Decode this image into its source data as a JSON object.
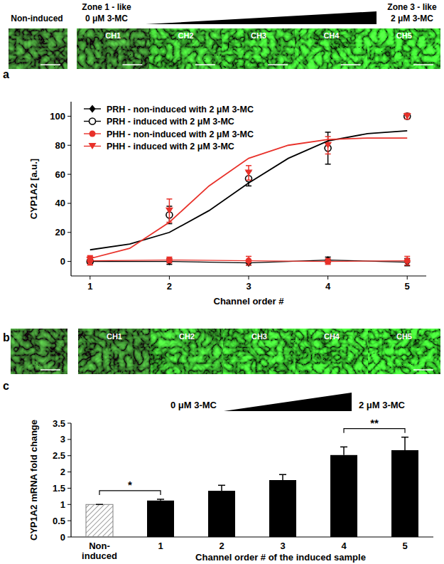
{
  "panel_letters": [
    "a",
    "b",
    "c"
  ],
  "image_panels": [
    {
      "reference_label": "Non-induced",
      "zone_start": "Zone 1 - like",
      "zone_end": "Zone 3 - like",
      "conc_start": "0 μM 3-MC",
      "conc_end": "2 μM 3-MC",
      "channels": [
        "CH1",
        "CH2",
        "CH3",
        "CH4",
        "CH5"
      ]
    },
    {
      "channels": [
        "CH1",
        "CH2",
        "CH3",
        "CH4",
        "CH5"
      ]
    }
  ],
  "chart_data": [
    {
      "type": "line",
      "x": [
        1,
        2,
        3,
        4,
        5
      ],
      "xlim": [
        0.76,
        5.24
      ],
      "xticks": [
        1,
        2,
        3,
        4,
        5
      ],
      "ylim": [
        -10,
        110
      ],
      "yticks": [
        0,
        20,
        40,
        60,
        80,
        100
      ],
      "x_label": "Channel order #",
      "y_label": "CYP1A2 [a.u.]",
      "legend": "upper left",
      "series": [
        {
          "name": "PRH - non-induced with 2 μM 3-MC",
          "color": "#000000",
          "marker": "diamond",
          "line_style": "solid",
          "values": [
            0,
            0,
            -1,
            1,
            -0.5
          ],
          "errors": [
            1,
            2,
            1.5,
            2,
            2.5
          ]
        },
        {
          "name": "PRH - induced with 2 μM 3-MC",
          "color": "#000000",
          "marker": "circle-open",
          "line_style": "none",
          "values": [
            0,
            32,
            57,
            78,
            100
          ],
          "errors": [
            1,
            6,
            5,
            11,
            1
          ]
        },
        {
          "name": "PHH - non-induced with 2 μM 3-MC",
          "color": "#e8312a",
          "marker": "circle",
          "line_style": "solid",
          "values": [
            0.5,
            1,
            0.5,
            0,
            0.5
          ],
          "errors": [
            3,
            2,
            3,
            2,
            3
          ]
        },
        {
          "name": "PHH - induced with 2 μM 3-MC",
          "color": "#e8312a",
          "marker": "triangle-down",
          "line_style": "none",
          "values": [
            1,
            35,
            61,
            80,
            100
          ],
          "errors": [
            3,
            8,
            5,
            6,
            2
          ]
        },
        {
          "type": "line",
          "color": "#000000",
          "marker": "none",
          "line_style": "solid",
          "x": [
            1,
            1.5,
            2,
            2.5,
            3,
            3.5,
            4,
            4.5,
            5
          ],
          "values": [
            8,
            12,
            20,
            35,
            54,
            71,
            83,
            88,
            90
          ]
        },
        {
          "type": "line",
          "color": "#e8312a",
          "marker": "none",
          "line_style": "solid",
          "x": [
            1,
            1.5,
            2,
            2.5,
            3,
            3.5,
            4,
            4.5,
            5
          ],
          "values": [
            2,
            9,
            27,
            52,
            71,
            80,
            84,
            85,
            85
          ]
        }
      ]
    },
    {
      "type": "bar",
      "categories": [
        "Non-induced",
        "1",
        "2",
        "3",
        "4",
        "5"
      ],
      "values": [
        1,
        1.12,
        1.42,
        1.75,
        2.52,
        2.67
      ],
      "errors": [
        0,
        0.04,
        0.17,
        0.17,
        0.25,
        0.4
      ],
      "colors": [
        "#808080",
        "#000000",
        "#000000",
        "#000000",
        "#000000",
        "#000000"
      ],
      "ylim": [
        0,
        3.5
      ],
      "yticks": [
        0,
        0.5,
        1,
        1.5,
        2,
        2.5,
        3,
        3.5
      ],
      "x_label": "Channel order # of the induced sample",
      "y_label": "CYP1A2 mRNA fold change",
      "annotations": [
        "0 μM 3-MC",
        "2 μM 3-MC"
      ],
      "significance": [
        {
          "label": "*",
          "categories": [
            "Non-induced",
            "1"
          ]
        },
        {
          "label": "**",
          "categories": [
            "4",
            "5"
          ]
        }
      ]
    }
  ]
}
